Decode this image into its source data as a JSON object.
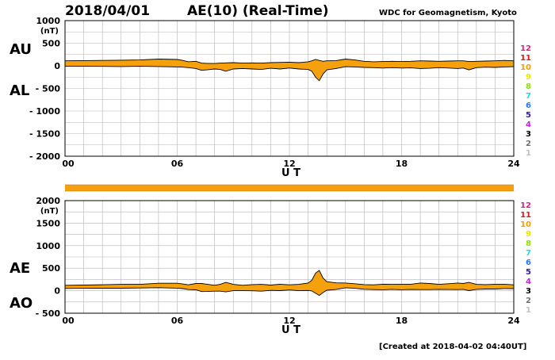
{
  "header": {
    "date": "2018/04/01",
    "title": "AE(10) (Real-Time)",
    "source": "WDC for Geomagnetism, Kyoto"
  },
  "footer": {
    "created": "[Created at 2018-04-02 04:40UT]"
  },
  "panels": {
    "top": {
      "label_upper": "AU",
      "label_lower": "AL"
    },
    "bottom": {
      "label_upper": "AE",
      "label_lower": "AO"
    }
  },
  "legend": {
    "items": [
      {
        "text": "12",
        "color": "#e8207a"
      },
      {
        "text": "11",
        "color": "#e01818"
      },
      {
        "text": "10",
        "color": "#f0a000"
      },
      {
        "text": "9",
        "color": "#e8e800"
      },
      {
        "text": "8",
        "color": "#90e000"
      },
      {
        "text": "7",
        "color": "#20d8e8"
      },
      {
        "text": "6",
        "color": "#2878f0"
      },
      {
        "text": "5",
        "color": "#3018b0"
      },
      {
        "text": "4",
        "color": "#c020e0"
      },
      {
        "text": "3",
        "color": "#000000"
      },
      {
        "text": "2",
        "color": "#707070"
      },
      {
        "text": "1",
        "color": "#c0c0c0"
      }
    ]
  },
  "colors": {
    "fill": "#f5a00d",
    "band": "#f5a00d",
    "grid": "#b4b4b4"
  },
  "chart_data": [
    {
      "type": "area",
      "name": "AU-AL",
      "title": "AE(10) (Real-Time)",
      "xlabel": "U T",
      "ylabel": "(nT)",
      "xlim": [
        0,
        24
      ],
      "ylim": [
        -2000,
        1000
      ],
      "x_ticks": [
        "00",
        "06",
        "12",
        "18",
        "24"
      ],
      "y_ticks": [
        "1000",
        "500",
        "0",
        "- 500",
        "- 1000",
        "- 1500",
        "- 2000"
      ],
      "x": [
        0,
        1,
        2,
        3,
        4,
        5,
        6,
        6.3,
        6.6,
        7,
        7.3,
        7.6,
        8,
        8.3,
        8.6,
        9,
        9.5,
        10,
        10.5,
        11,
        11.5,
        12,
        12.5,
        13,
        13.2,
        13.4,
        13.6,
        13.8,
        14,
        14.5,
        15,
        15.5,
        16,
        16.5,
        17,
        17.5,
        18,
        18.5,
        19,
        19.5,
        20,
        20.5,
        21,
        21.3,
        21.6,
        22,
        22.5,
        23,
        23.5,
        24
      ],
      "series": [
        {
          "name": "AU",
          "values": [
            110,
            115,
            120,
            125,
            130,
            150,
            140,
            120,
            90,
            100,
            60,
            55,
            50,
            60,
            65,
            70,
            60,
            65,
            60,
            70,
            75,
            80,
            70,
            90,
            110,
            140,
            120,
            100,
            110,
            115,
            150,
            130,
            100,
            90,
            95,
            100,
            95,
            100,
            110,
            105,
            100,
            105,
            110,
            110,
            95,
            100,
            105,
            110,
            120,
            110
          ]
        },
        {
          "name": "AL",
          "values": [
            -10,
            -10,
            -12,
            -15,
            -10,
            -15,
            -25,
            -30,
            -40,
            -60,
            -100,
            -90,
            -70,
            -80,
            -120,
            -70,
            -60,
            -70,
            -80,
            -55,
            -70,
            -50,
            -70,
            -80,
            -120,
            -250,
            -330,
            -180,
            -90,
            -60,
            -20,
            -25,
            -35,
            -40,
            -50,
            -40,
            -50,
            -45,
            -60,
            -55,
            -40,
            -50,
            -60,
            -50,
            -90,
            -40,
            -30,
            -35,
            -25,
            -20
          ]
        }
      ]
    },
    {
      "type": "area",
      "name": "AE-AO",
      "xlabel": "U T",
      "ylabel": "(nT)",
      "xlim": [
        0,
        24
      ],
      "ylim": [
        -500,
        2000
      ],
      "x_ticks": [
        "00",
        "06",
        "12",
        "18",
        "24"
      ],
      "y_ticks": [
        "2000",
        "1500",
        "1000",
        "500",
        "0",
        "- 500"
      ],
      "x": [
        0,
        1,
        2,
        3,
        4,
        5,
        6,
        6.3,
        6.6,
        7,
        7.3,
        7.6,
        8,
        8.3,
        8.6,
        9,
        9.5,
        10,
        10.5,
        11,
        11.5,
        12,
        12.5,
        13,
        13.2,
        13.4,
        13.6,
        13.8,
        14,
        14.5,
        15,
        15.5,
        16,
        16.5,
        17,
        17.5,
        18,
        18.5,
        19,
        19.5,
        20,
        20.5,
        21,
        21.3,
        21.6,
        22,
        22.5,
        23,
        23.5,
        24
      ],
      "series": [
        {
          "name": "AE",
          "values": [
            120,
            125,
            132,
            140,
            140,
            165,
            165,
            150,
            130,
            160,
            160,
            145,
            120,
            140,
            185,
            140,
            120,
            135,
            140,
            125,
            145,
            130,
            140,
            170,
            230,
            390,
            450,
            280,
            200,
            175,
            170,
            155,
            135,
            130,
            145,
            140,
            145,
            145,
            170,
            160,
            140,
            155,
            170,
            160,
            185,
            140,
            135,
            145,
            145,
            130
          ]
        },
        {
          "name": "AO",
          "values": [
            50,
            52,
            54,
            55,
            60,
            67,
            57,
            45,
            25,
            20,
            -20,
            -17,
            -10,
            -10,
            -27,
            0,
            0,
            -2,
            -10,
            7,
            2,
            15,
            0,
            5,
            -5,
            -55,
            -105,
            -40,
            10,
            27,
            65,
            52,
            32,
            25,
            22,
            30,
            22,
            27,
            25,
            25,
            30,
            27,
            25,
            30,
            2,
            30,
            37,
            37,
            47,
            45
          ]
        }
      ]
    }
  ]
}
